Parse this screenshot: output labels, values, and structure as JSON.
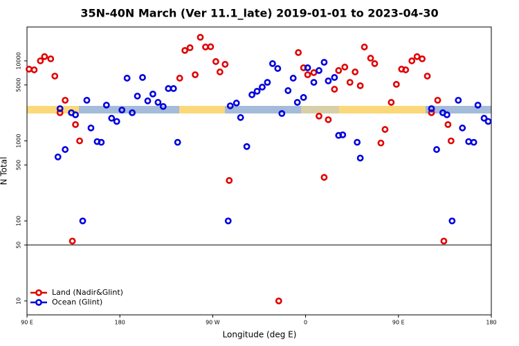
{
  "chart_data": {
    "type": "scatter",
    "title": "35N-40N March (Ver 11.1_late)   2019-01-01 to 2023-04-30",
    "xlabel": "Longitude (deg E)",
    "ylabel": "N Total",
    "xlim": [
      90,
      540
    ],
    "xticks": [
      {
        "value": 90,
        "label": "90 E"
      },
      180,
      {
        "value": 270,
        "label": "90 W"
      },
      {
        "value": 360,
        "label": "0"
      },
      {
        "value": 450,
        "label": "90 E"
      },
      {
        "value": 540,
        "label": "180"
      }
    ],
    "ylim": [
      6.7,
      26500
    ],
    "yticks": [
      10,
      50,
      100,
      500,
      1000,
      5000,
      10000
    ],
    "log_y": true,
    "hline": 50,
    "legend": "lower left",
    "series": [
      {
        "name": "Land (Nadir&Glint)",
        "color": "#e00000",
        "x": [
          92,
          97,
          103,
          107,
          113,
          117,
          122,
          127,
          137,
          141,
          134,
          238,
          243,
          248,
          253,
          258,
          263,
          268,
          273,
          277,
          282,
          286,
          334,
          353,
          358,
          362,
          368,
          373,
          378,
          382,
          388,
          392,
          398,
          403,
          408,
          413,
          417,
          423,
          427,
          433,
          437,
          443,
          448,
          453,
          457,
          463,
          468,
          473,
          478,
          482,
          488,
          494,
          498,
          501
        ],
        "values": [
          7880,
          7720,
          10000,
          11300,
          10600,
          6450,
          2250,
          3220,
          1600,
          1000,
          56,
          6080,
          13500,
          14600,
          6710,
          19700,
          14900,
          15000,
          9800,
          7270,
          9050,
          320,
          10,
          12700,
          8200,
          6710,
          7130,
          2040,
          350,
          1840,
          4420,
          7570,
          8360,
          5390,
          7270,
          4890,
          14900,
          10800,
          9240,
          940,
          1390,
          3030,
          5090,
          7880,
          7720,
          10000,
          11300,
          10600,
          6450,
          2250,
          3220,
          56,
          1600,
          1000
        ]
      },
      {
        "name": "Ocean (Glint)",
        "color": "#0000dd",
        "x": [
          120,
          122,
          127,
          133,
          137,
          144,
          148,
          152,
          158,
          162,
          167,
          172,
          177,
          182,
          187,
          192,
          197,
          202,
          207,
          212,
          217,
          222,
          227,
          232,
          236,
          285,
          287,
          293,
          297,
          303,
          308,
          313,
          318,
          323,
          328,
          333,
          337,
          343,
          348,
          352,
          358,
          362,
          368,
          373,
          378,
          382,
          388,
          392,
          396,
          410,
          413,
          482,
          487,
          493,
          497,
          502,
          508,
          512,
          518,
          523,
          527,
          533,
          537
        ],
        "values": [
          630,
          2530,
          780,
          2250,
          2120,
          100,
          3220,
          1450,
          980,
          960,
          2800,
          1920,
          1750,
          2430,
          6080,
          2250,
          3630,
          6200,
          3160,
          3850,
          3030,
          2690,
          4510,
          4510,
          960,
          100,
          2740,
          2970,
          1960,
          850,
          3770,
          4170,
          4700,
          5390,
          9240,
          8030,
          2200,
          4250,
          6080,
          3030,
          3490,
          8200,
          5390,
          7570,
          9600,
          5620,
          6200,
          1170,
          1190,
          960,
          610,
          2530,
          780,
          2250,
          2120,
          100,
          3220,
          1450,
          980,
          960,
          2800,
          1920,
          1750
        ]
      }
    ]
  }
}
